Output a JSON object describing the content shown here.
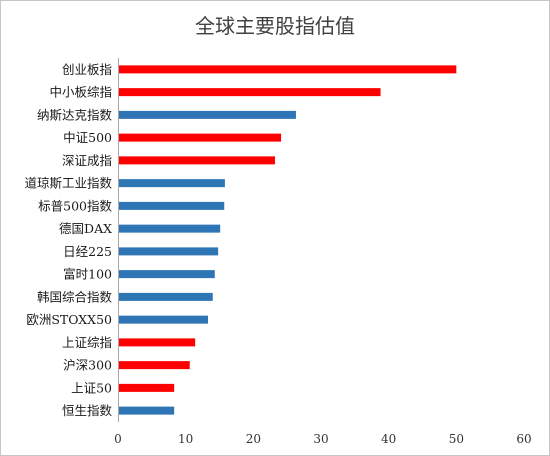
{
  "chart_data": {
    "type": "bar",
    "orientation": "horizontal",
    "title": "全球主要股指估值",
    "categories": [
      "创业板指",
      "中小板综指",
      "纳斯达克指数",
      "中证500",
      "深证成指",
      "道琼斯工业指数",
      "标普500指数",
      "德国DAX",
      "日经225",
      "富时100",
      "韩国综合指数",
      "欧洲STOXX50",
      "上证综指",
      "沪深300",
      "上证50",
      "恒生指数"
    ],
    "values": [
      50.0,
      38.8,
      26.3,
      24.1,
      23.2,
      15.8,
      15.7,
      15.1,
      14.8,
      14.3,
      14.0,
      13.3,
      11.4,
      10.6,
      8.3,
      8.3
    ],
    "colors": [
      "#FF0000",
      "#FF0000",
      "#2E75B6",
      "#FF0000",
      "#FF0000",
      "#2E75B6",
      "#2E75B6",
      "#2E75B6",
      "#2E75B6",
      "#2E75B6",
      "#2E75B6",
      "#2E75B6",
      "#FF0000",
      "#FF0000",
      "#FF0000",
      "#2E75B6"
    ],
    "xlim": [
      0,
      60
    ],
    "xticks": [
      0,
      10,
      20,
      30,
      40,
      50,
      60
    ],
    "grid": false
  }
}
